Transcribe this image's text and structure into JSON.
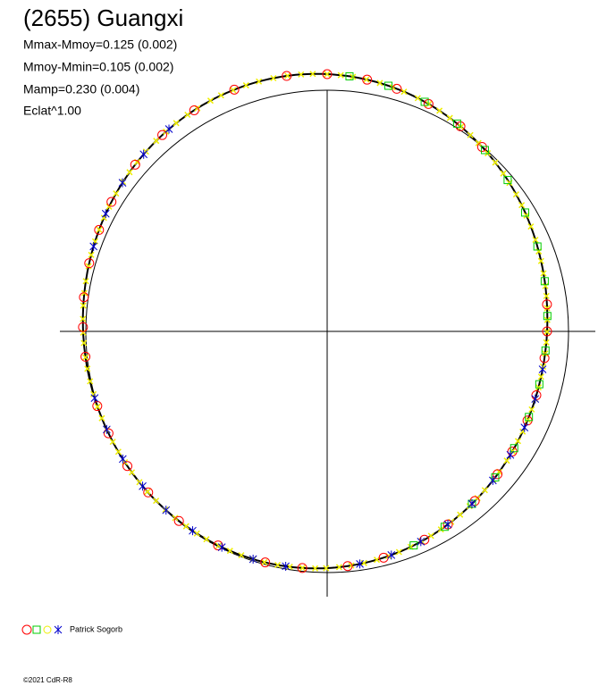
{
  "title": "(2655) Guangxi",
  "stats": [
    "Mmax-Mmoy=0.125 (0.002)",
    "Mmoy-Mmin=0.105 (0.002)",
    "Mamp=0.230 (0.004)",
    "Eclat^1.00"
  ],
  "legend": {
    "observer": "Patrick Sogorb"
  },
  "footer": "©2021 CdR-R8"
}
